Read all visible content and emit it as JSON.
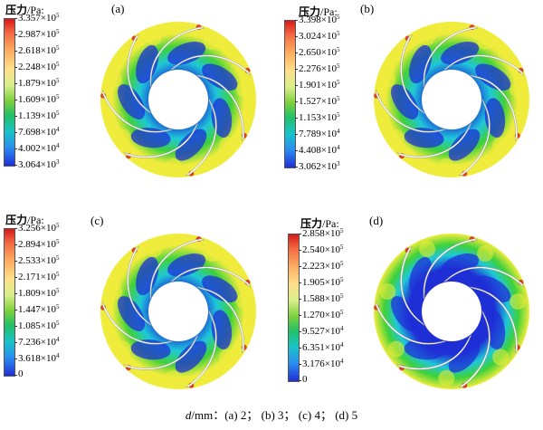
{
  "legend_title_cn": "压力",
  "legend_title_unit": "/Pa:",
  "caption": {
    "var": "d",
    "rest": "/mm：(a) 2； (b) 3； (c) 4； (d) 5"
  },
  "panels": [
    {
      "label": "(a)",
      "ticks": [
        {
          "m": "3.357",
          "e": "5"
        },
        {
          "m": "2.987",
          "e": "5"
        },
        {
          "m": "2.618",
          "e": "5"
        },
        {
          "m": "2.248",
          "e": "5"
        },
        {
          "m": "1.879",
          "e": "5"
        },
        {
          "m": "1.609",
          "e": "5"
        },
        {
          "m": "1.139",
          "e": "5"
        },
        {
          "m": "7.698",
          "e": "4"
        },
        {
          "m": "4.002",
          "e": "4"
        },
        {
          "m": "3.064",
          "e": "3"
        }
      ]
    },
    {
      "label": "(b)",
      "ticks": [
        {
          "m": "3.398",
          "e": "5"
        },
        {
          "m": "3.024",
          "e": "5"
        },
        {
          "m": "2.650",
          "e": "5"
        },
        {
          "m": "2.276",
          "e": "5"
        },
        {
          "m": "1.901",
          "e": "5"
        },
        {
          "m": "1.527",
          "e": "5"
        },
        {
          "m": "1.153",
          "e": "5"
        },
        {
          "m": "7.789",
          "e": "4"
        },
        {
          "m": "4.408",
          "e": "4"
        },
        {
          "m": "3.062",
          "e": "3"
        }
      ]
    },
    {
      "label": "(c)",
      "ticks": [
        {
          "m": "3.256",
          "e": "5"
        },
        {
          "m": "2.894",
          "e": "5"
        },
        {
          "m": "2.533",
          "e": "5"
        },
        {
          "m": "2.171",
          "e": "5"
        },
        {
          "m": "1.809",
          "e": "5"
        },
        {
          "m": "1.447",
          "e": "5"
        },
        {
          "m": "1.085",
          "e": "5"
        },
        {
          "m": "7.236",
          "e": "4"
        },
        {
          "m": "3.618",
          "e": "4"
        },
        {
          "m": "0",
          "e": ""
        }
      ]
    },
    {
      "label": "(d)",
      "ticks": [
        {
          "m": "2.858",
          "e": "5"
        },
        {
          "m": "2.540",
          "e": "5"
        },
        {
          "m": "2.223",
          "e": "5"
        },
        {
          "m": "1.905",
          "e": "5"
        },
        {
          "m": "1.588",
          "e": "5"
        },
        {
          "m": "1.270",
          "e": "5"
        },
        {
          "m": "9.527",
          "e": "4"
        },
        {
          "m": "6.351",
          "e": "4"
        },
        {
          "m": "3.176",
          "e": "4"
        },
        {
          "m": "0",
          "e": ""
        }
      ]
    }
  ],
  "colors": {
    "high": "#d7191c",
    "yellow": "#f0ec3c",
    "green": "#3fd13a",
    "cyan": "#1ec8d8",
    "low": "#1f2fd6",
    "blade": "#ffffff"
  }
}
